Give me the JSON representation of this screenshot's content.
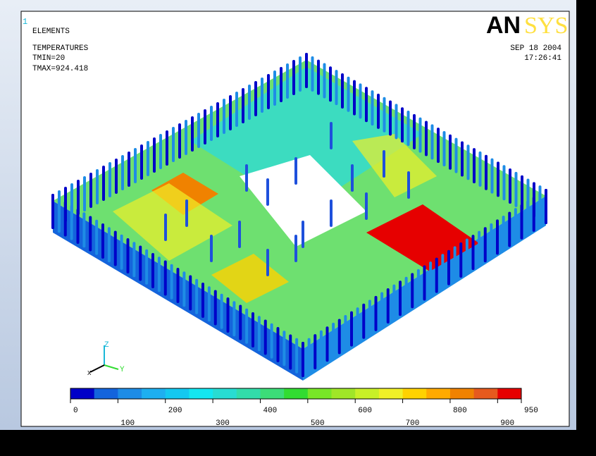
{
  "window": {
    "number": "1",
    "mode": "ELEMENTS",
    "result": "TEMPERATURES",
    "tmin": "TMIN=20",
    "tmax": "TMAX=924.418",
    "logo": [
      "AN",
      "SYS"
    ],
    "date": "SEP 18 2004",
    "time": "17:26:41"
  },
  "triad": {
    "x": "X",
    "y": "Y",
    "z": "Z"
  },
  "legend": {
    "lim": [
      0,
      950
    ],
    "ticks": [
      0,
      100,
      200,
      300,
      400,
      500,
      600,
      700,
      800,
      900,
      950
    ],
    "colors": [
      "#0000c8",
      "#1464dc",
      "#1e8ce6",
      "#1eaff0",
      "#14c8f0",
      "#14e6f0",
      "#28dcd2",
      "#32dcaa",
      "#3cdc78",
      "#32dc32",
      "#78e628",
      "#a0e628",
      "#c8f028",
      "#f0f028",
      "#ffd200",
      "#ffaa00",
      "#f08200",
      "#e65a1e",
      "#e60000"
    ]
  }
}
